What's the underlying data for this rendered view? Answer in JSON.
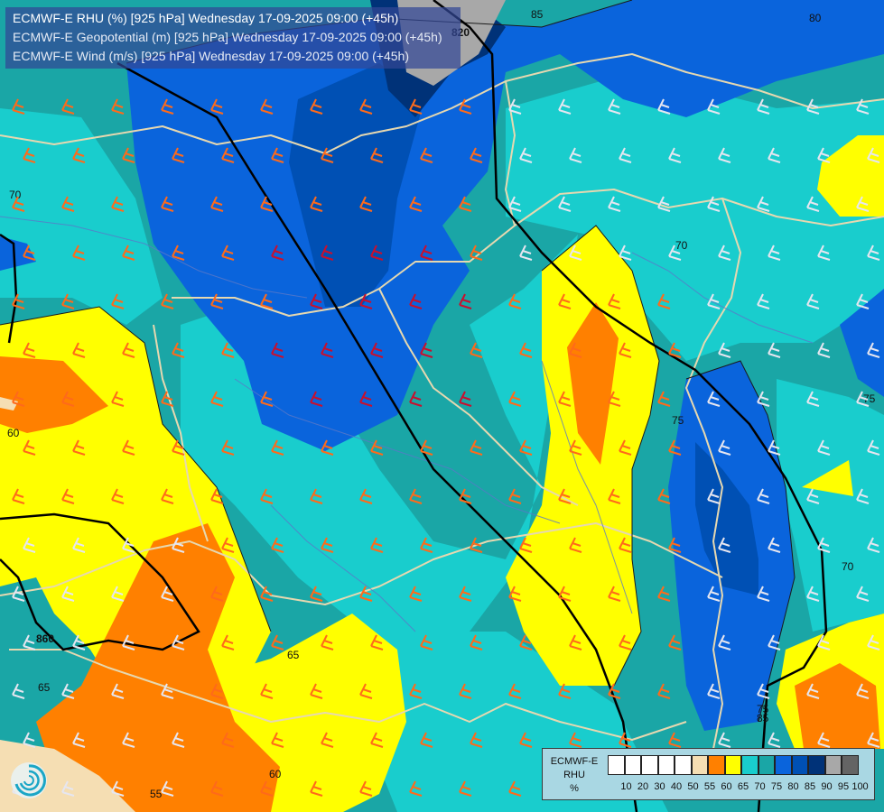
{
  "header": {
    "lines": [
      "ECMWF-E RHU (%) [925 hPa] Wednesday 17-09-2025 09:00 (+45h)",
      "ECMWF-E Geopotential (m) [925 hPa] Wednesday 17-09-2025 09:00 (+45h)",
      "ECMWF-E Wind (m/s) [925 hPa] Wednesday 17-09-2025 09:00 (+45h)"
    ]
  },
  "legend": {
    "title_lines": [
      "ECMWF-E",
      "RHU",
      "%"
    ],
    "ticks": [
      "10",
      "20",
      "30",
      "40",
      "50",
      "55",
      "60",
      "65",
      "70",
      "75",
      "80",
      "85",
      "90",
      "95",
      "100"
    ],
    "colors": [
      "#ffffff",
      "#ffffff",
      "#ffffff",
      "#ffffff",
      "#ffffff",
      "#f5deb3",
      "#ff8000",
      "#ffff00",
      "#19cdcd",
      "#1aa6a6",
      "#0a64dc",
      "#0050b4",
      "#003278",
      "#a8a8a8",
      "#646464"
    ]
  },
  "contour_labels": {
    "rhu": [
      "70",
      "70",
      "70",
      "75",
      "75",
      "75",
      "80",
      "85",
      "85",
      "60",
      "60",
      "65",
      "65",
      "55"
    ],
    "geopotential": [
      "820",
      "860"
    ]
  },
  "map_colors": {
    "rhu_55": "#f5deb3",
    "rhu_60": "#ff8000",
    "rhu_65": "#ffff00",
    "rhu_70": "#19cdcd",
    "rhu_75": "#1aa6a6",
    "rhu_80": "#0a64dc",
    "rhu_85": "#0050b4",
    "rhu_90": "#003278",
    "rhu_95": "#a8a8a8",
    "borders": "#e6d8b0",
    "rivers": "#5a78c8",
    "geopotential_isoline": "#000000"
  },
  "icons": {
    "logo": "ecmwf-swirl-logo-icon"
  }
}
